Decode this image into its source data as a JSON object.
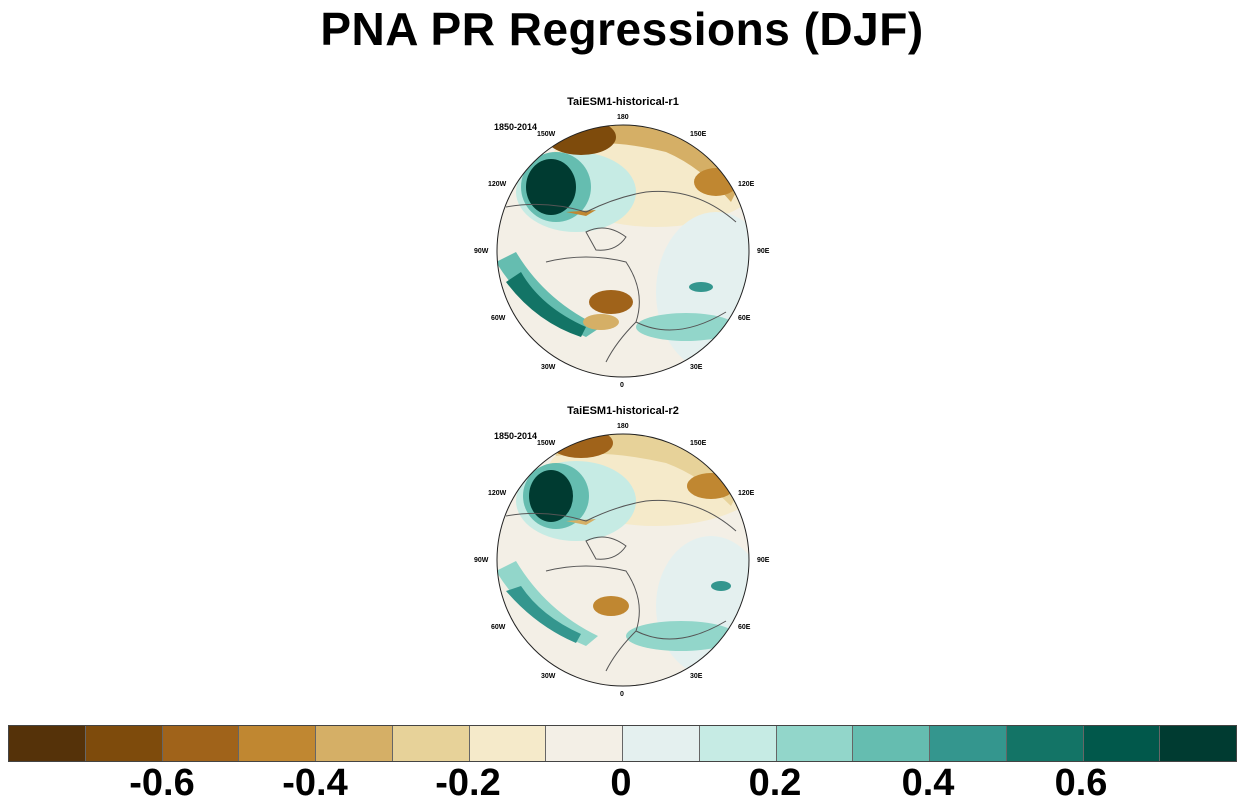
{
  "title": "PNA PR Regressions (DJF)",
  "panels": [
    {
      "name": "TaiESM1-historical-r1",
      "period": "1850-2014"
    },
    {
      "name": "TaiESM1-historical-r2",
      "period": "1850-2014"
    }
  ],
  "longitude_labels": {
    "lon_180": "180",
    "lon_150e": "150E",
    "lon_120e": "120E",
    "lon_90e": "90E",
    "lon_60e": "60E",
    "lon_30e": "30E",
    "lon_0": "0",
    "lon_30w": "30W",
    "lon_60w": "60W",
    "lon_90w": "90W",
    "lon_120w": "120W",
    "lon_150w": "150W"
  },
  "colorbar": {
    "colors": [
      "#553209",
      "#7e4b0c",
      "#a0631a",
      "#c08731",
      "#d5af66",
      "#e7d299",
      "#f5eaca",
      "#f3efe6",
      "#e4f0ef",
      "#c6ebe4",
      "#92d6ca",
      "#65bdb0",
      "#34968e",
      "#137466",
      "#01584b",
      "#003b31"
    ],
    "labels": {
      "neg06": "-0.6",
      "neg04": "-0.4",
      "neg02": "-0.2",
      "zero": "0",
      "pos02": "0.2",
      "pos04": "0.4",
      "pos06": "0.6"
    }
  }
}
